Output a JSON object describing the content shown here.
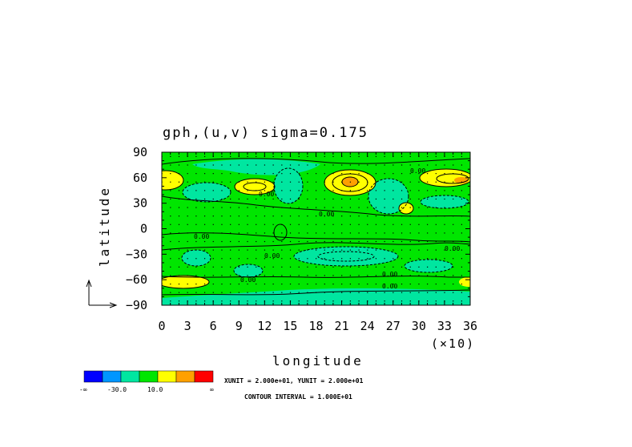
{
  "chart_data": {
    "type": "contour",
    "title": "gph,(u,v)  sigma=0.175",
    "xlabel": "longitude",
    "ylabel": "latitude",
    "x_scale_note": "(×10)",
    "xlim": [
      0,
      36
    ],
    "ylim": [
      -90,
      90
    ],
    "xticks": [
      "0",
      "3",
      "6",
      "9",
      "12",
      "15",
      "18",
      "21",
      "24",
      "27",
      "30",
      "33",
      "36"
    ],
    "yticks": [
      "90",
      "60",
      "30",
      "0",
      "-30",
      "-60",
      "-90"
    ],
    "contour_labels": [
      "0.00",
      "0.00",
      "0.00",
      "0.00",
      "0.00",
      "0.00",
      "0.00",
      "0.00",
      "0.00"
    ],
    "colorbar": {
      "colors": [
        "#0000ff",
        "#0096ff",
        "#00e6a0",
        "#00e600",
        "#ffff00",
        "#ffa000",
        "#ff0000"
      ],
      "labels": [
        "-∞",
        "-30.0",
        "10.0",
        "∞"
      ]
    },
    "unit_text": "XUNIT = 2.000e+01, YUNIT = 2.000e+01",
    "interval_text": "CONTOUR INTERVAL = 1.000E+01",
    "fill_colors": {
      "background": "#00e600",
      "low": "#00e6a0",
      "high": "#ffff00",
      "peak": "#ffa000"
    }
  }
}
